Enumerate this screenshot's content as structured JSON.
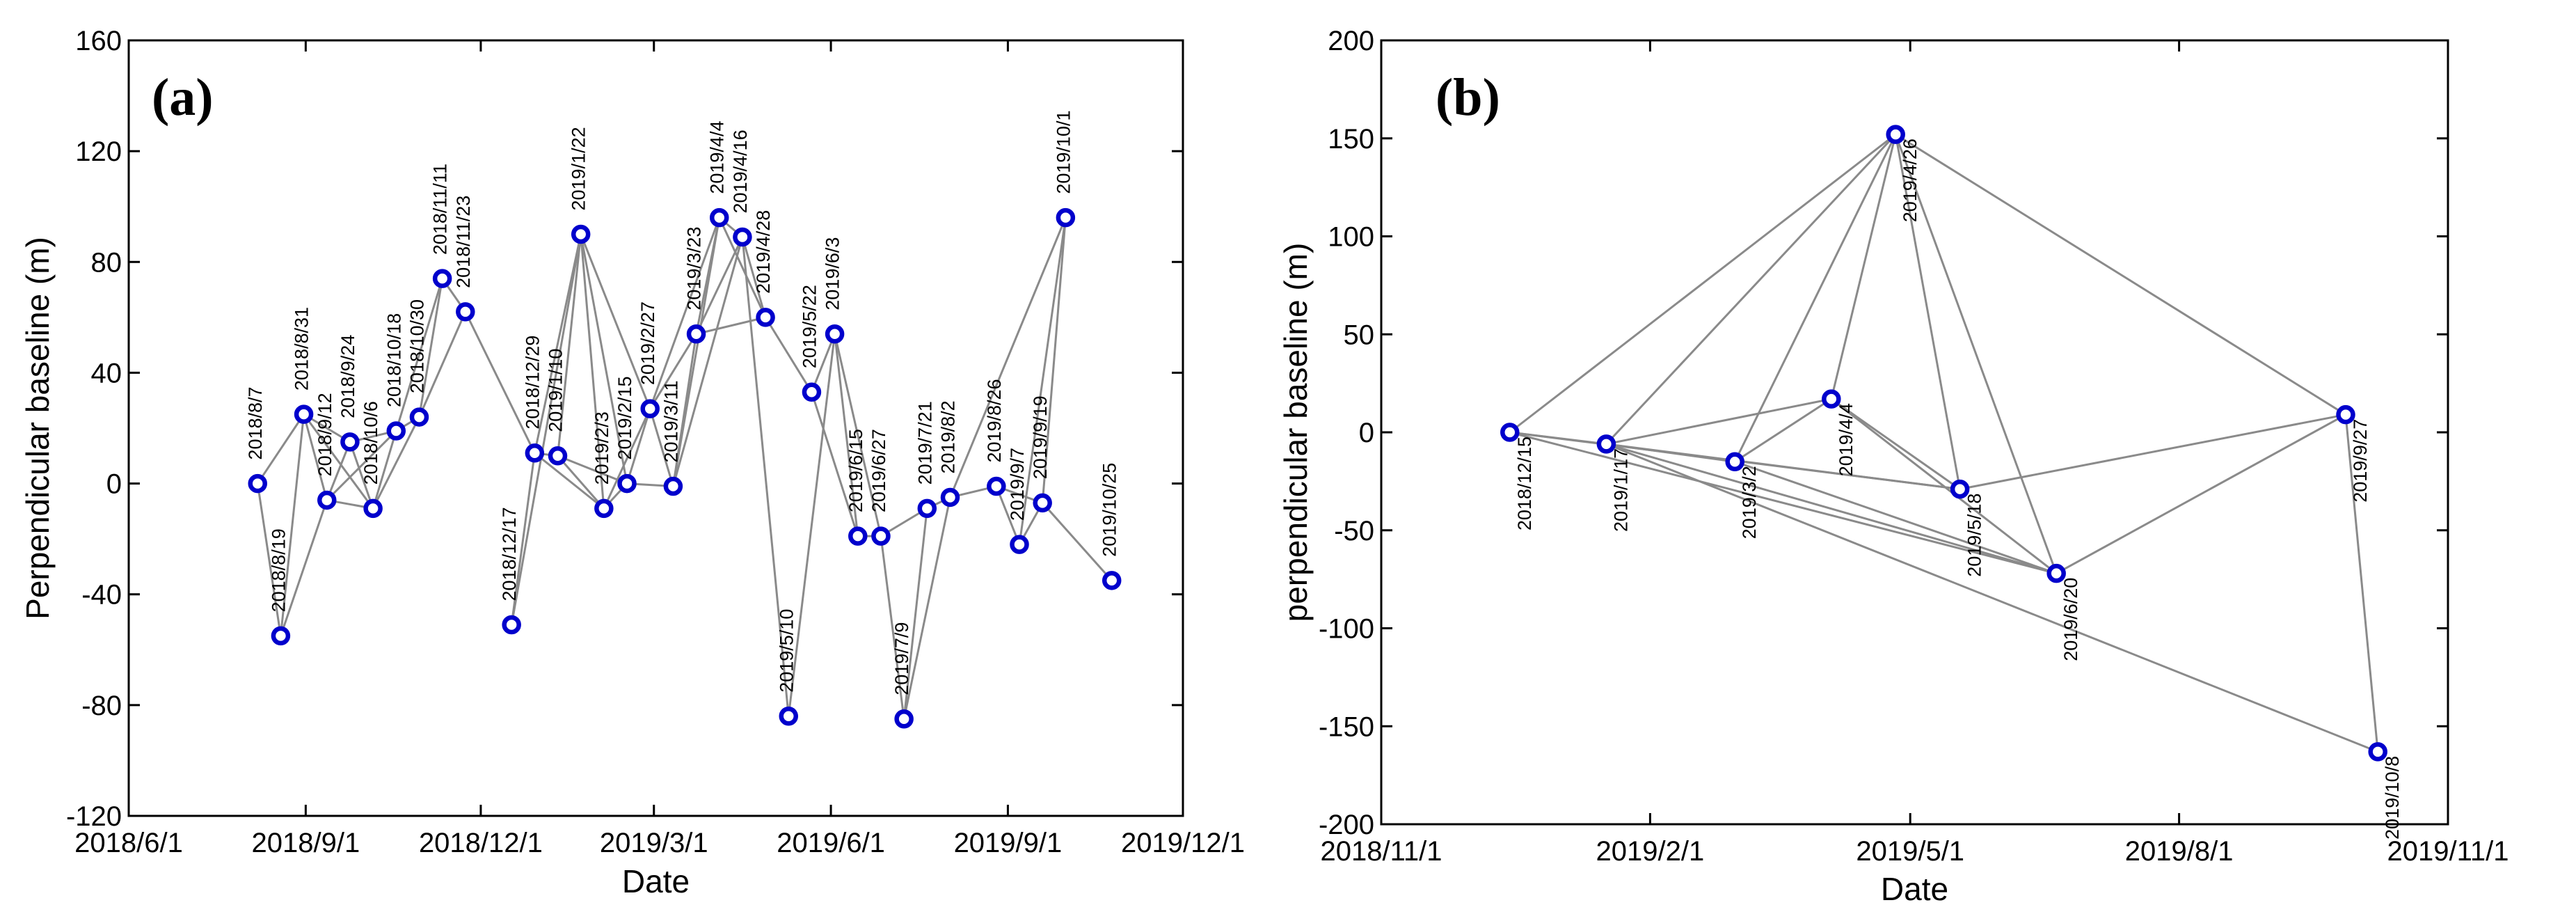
{
  "chart_data": [
    {
      "type": "scatter",
      "panel_label": "(a)",
      "xlabel": "Date",
      "ylabel": "Perpendicular baseline (m)",
      "ylim": [
        -120,
        160
      ],
      "xlim": [
        "2018-06-01",
        "2019-12-01"
      ],
      "yticks": [
        -120,
        -80,
        -40,
        0,
        40,
        80,
        120,
        160
      ],
      "xticks": [
        {
          "date": "2018-06-01",
          "label": "2018/6/1"
        },
        {
          "date": "2018-09-01",
          "label": "2018/9/1"
        },
        {
          "date": "2018-12-01",
          "label": "2018/12/1"
        },
        {
          "date": "2019-03-01",
          "label": "2019/3/1"
        },
        {
          "date": "2019-06-01",
          "label": "2019/6/1"
        },
        {
          "date": "2019-09-01",
          "label": "2019/9/1"
        },
        {
          "date": "2019-12-01",
          "label": "2019/12/1"
        }
      ],
      "points": [
        {
          "label": "2018/8/7",
          "date": "2018-08-07",
          "baseline": 0
        },
        {
          "label": "2018/8/19",
          "date": "2018-08-19",
          "baseline": -55
        },
        {
          "label": "2018/8/31",
          "date": "2018-08-31",
          "baseline": 25
        },
        {
          "label": "2018/9/12",
          "date": "2018-09-12",
          "baseline": -6
        },
        {
          "label": "2018/9/24",
          "date": "2018-09-24",
          "baseline": 15
        },
        {
          "label": "2018/10/6",
          "date": "2018-10-06",
          "baseline": -9
        },
        {
          "label": "2018/10/18",
          "date": "2018-10-18",
          "baseline": 19
        },
        {
          "label": "2018/10/30",
          "date": "2018-10-30",
          "baseline": 24
        },
        {
          "label": "2018/11/11",
          "date": "2018-11-11",
          "baseline": 74
        },
        {
          "label": "2018/11/23",
          "date": "2018-11-23",
          "baseline": 62
        },
        {
          "label": "2018/12/17",
          "date": "2018-12-17",
          "baseline": -51
        },
        {
          "label": "2018/12/29",
          "date": "2018-12-29",
          "baseline": 11
        },
        {
          "label": "2019/1/10",
          "date": "2019-01-10",
          "baseline": 10
        },
        {
          "label": "2019/1/22",
          "date": "2019-01-22",
          "baseline": 90
        },
        {
          "label": "2019/2/3",
          "date": "2019-02-03",
          "baseline": -9
        },
        {
          "label": "2019/2/15",
          "date": "2019-02-15",
          "baseline": 0
        },
        {
          "label": "2019/2/27",
          "date": "2019-02-27",
          "baseline": 27
        },
        {
          "label": "2019/3/11",
          "date": "2019-03-11",
          "baseline": -1
        },
        {
          "label": "2019/3/23",
          "date": "2019-03-23",
          "baseline": 54
        },
        {
          "label": "2019/4/4",
          "date": "2019-04-04",
          "baseline": 96
        },
        {
          "label": "2019/4/16",
          "date": "2019-04-16",
          "baseline": 89
        },
        {
          "label": "2019/4/28",
          "date": "2019-04-28",
          "baseline": 60
        },
        {
          "label": "2019/5/10",
          "date": "2019-05-10",
          "baseline": -84
        },
        {
          "label": "2019/5/22",
          "date": "2019-05-22",
          "baseline": 33
        },
        {
          "label": "2019/6/3",
          "date": "2019-06-03",
          "baseline": 54
        },
        {
          "label": "2019/6/15",
          "date": "2019-06-15",
          "baseline": -19
        },
        {
          "label": "2019/6/27",
          "date": "2019-06-27",
          "baseline": -19
        },
        {
          "label": "2019/7/9",
          "date": "2019-07-09",
          "baseline": -85
        },
        {
          "label": "2019/7/21",
          "date": "2019-07-21",
          "baseline": -9
        },
        {
          "label": "2019/8/2",
          "date": "2019-08-02",
          "baseline": -5
        },
        {
          "label": "2019/8/26",
          "date": "2019-08-26",
          "baseline": -1
        },
        {
          "label": "2019/9/7",
          "date": "2019-09-07",
          "baseline": -22
        },
        {
          "label": "2019/9/19",
          "date": "2019-09-19",
          "baseline": -7
        },
        {
          "label": "2019/10/1",
          "date": "2019-10-01",
          "baseline": 96
        },
        {
          "label": "2019/10/25",
          "date": "2019-10-25",
          "baseline": -35
        }
      ],
      "edges": [
        [
          0,
          1
        ],
        [
          0,
          2
        ],
        [
          1,
          2
        ],
        [
          1,
          3
        ],
        [
          2,
          3
        ],
        [
          2,
          4
        ],
        [
          2,
          5
        ],
        [
          3,
          4
        ],
        [
          3,
          5
        ],
        [
          3,
          6
        ],
        [
          4,
          5
        ],
        [
          4,
          6
        ],
        [
          5,
          6
        ],
        [
          5,
          7
        ],
        [
          6,
          7
        ],
        [
          6,
          8
        ],
        [
          7,
          8
        ],
        [
          7,
          9
        ],
        [
          8,
          9
        ],
        [
          9,
          11
        ],
        [
          10,
          11
        ],
        [
          10,
          13
        ],
        [
          11,
          12
        ],
        [
          11,
          13
        ],
        [
          11,
          14
        ],
        [
          12,
          13
        ],
        [
          12,
          14
        ],
        [
          12,
          15
        ],
        [
          13,
          14
        ],
        [
          13,
          15
        ],
        [
          13,
          16
        ],
        [
          14,
          15
        ],
        [
          14,
          16
        ],
        [
          15,
          16
        ],
        [
          15,
          17
        ],
        [
          16,
          17
        ],
        [
          16,
          18
        ],
        [
          16,
          19
        ],
        [
          17,
          18
        ],
        [
          17,
          19
        ],
        [
          17,
          20
        ],
        [
          18,
          19
        ],
        [
          18,
          20
        ],
        [
          18,
          21
        ],
        [
          19,
          20
        ],
        [
          19,
          21
        ],
        [
          20,
          21
        ],
        [
          20,
          22
        ],
        [
          21,
          23
        ],
        [
          22,
          24
        ],
        [
          23,
          24
        ],
        [
          23,
          25
        ],
        [
          24,
          25
        ],
        [
          24,
          26
        ],
        [
          25,
          26
        ],
        [
          26,
          27
        ],
        [
          26,
          28
        ],
        [
          27,
          28
        ],
        [
          27,
          29
        ],
        [
          28,
          29
        ],
        [
          29,
          30
        ],
        [
          30,
          31
        ],
        [
          30,
          32
        ],
        [
          31,
          32
        ],
        [
          31,
          33
        ],
        [
          32,
          33
        ],
        [
          32,
          34
        ],
        [
          29,
          33
        ]
      ]
    },
    {
      "type": "scatter",
      "panel_label": "(b)",
      "xlabel": "Date",
      "ylabel": "perpendicular baseline (m)",
      "ylim": [
        -200,
        200
      ],
      "xlim": [
        "2018-11-01",
        "2019-11-01"
      ],
      "yticks": [
        -200,
        -150,
        -100,
        -50,
        0,
        50,
        100,
        150,
        200
      ],
      "xticks": [
        {
          "date": "2018-11-01",
          "label": "2018/11/1"
        },
        {
          "date": "2019-02-01",
          "label": "2019/2/1"
        },
        {
          "date": "2019-05-01",
          "label": "2019/5/1"
        },
        {
          "date": "2019-08-01",
          "label": "2019/8/1"
        },
        {
          "date": "2019-11-01",
          "label": "2019/11/1"
        }
      ],
      "points": [
        {
          "label": "2018/12/15",
          "date": "2018-12-15",
          "baseline": 0
        },
        {
          "label": "2019/1/17",
          "date": "2019-01-17",
          "baseline": -6
        },
        {
          "label": "2019/3/2",
          "date": "2019-03-02",
          "baseline": -15
        },
        {
          "label": "2019/4/4",
          "date": "2019-04-04",
          "baseline": 17
        },
        {
          "label": "2019/4/26",
          "date": "2019-04-26",
          "baseline": 152
        },
        {
          "label": "2019/5/18",
          "date": "2019-05-18",
          "baseline": -29
        },
        {
          "label": "2019/6/20",
          "date": "2019-06-20",
          "baseline": -72
        },
        {
          "label": "2019/9/27",
          "date": "2019-09-27",
          "baseline": 9
        },
        {
          "label": "2019/10/8",
          "date": "2019-10-08",
          "baseline": -163
        }
      ],
      "edges": [
        [
          0,
          1
        ],
        [
          0,
          4
        ],
        [
          0,
          5
        ],
        [
          0,
          6
        ],
        [
          1,
          2
        ],
        [
          1,
          3
        ],
        [
          1,
          4
        ],
        [
          1,
          5
        ],
        [
          1,
          6
        ],
        [
          1,
          8
        ],
        [
          2,
          3
        ],
        [
          2,
          4
        ],
        [
          2,
          6
        ],
        [
          3,
          4
        ],
        [
          3,
          5
        ],
        [
          3,
          6
        ],
        [
          4,
          5
        ],
        [
          4,
          6
        ],
        [
          4,
          7
        ],
        [
          5,
          7
        ],
        [
          6,
          7
        ],
        [
          7,
          8
        ]
      ]
    }
  ]
}
